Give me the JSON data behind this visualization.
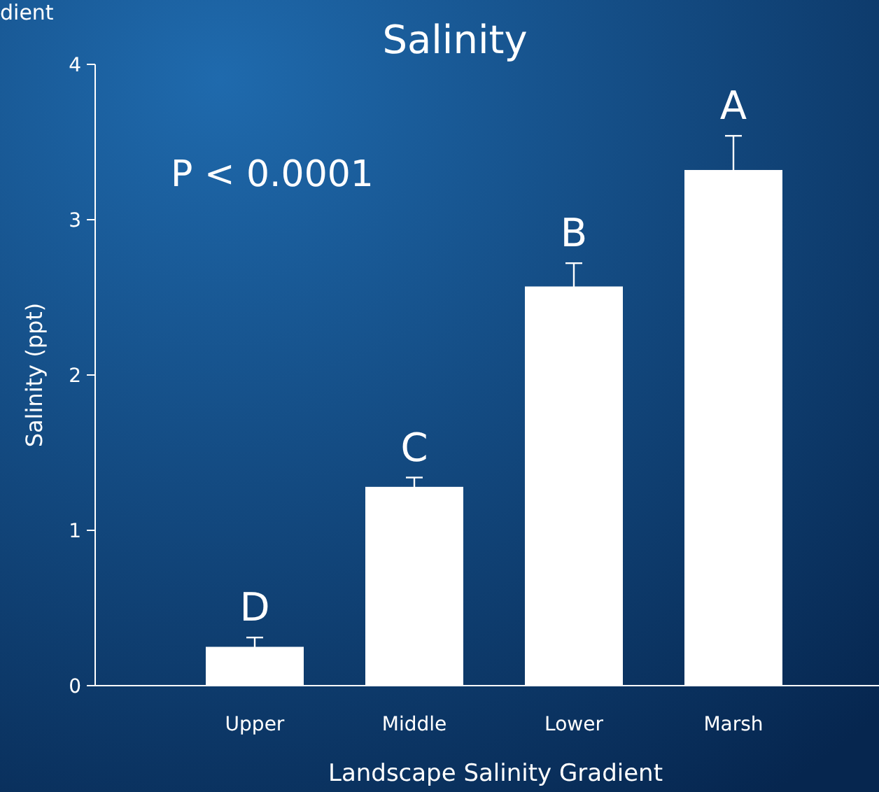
{
  "chart_data": {
    "type": "bar",
    "title": "Salinity",
    "xlabel": "Landscape Salinity Gradient",
    "ylabel": "Salinity (ppt)",
    "categories": [
      "Upper",
      "Middle",
      "Lower",
      "Marsh"
    ],
    "values": [
      0.25,
      1.28,
      2.57,
      3.32
    ],
    "errors": [
      0.06,
      0.06,
      0.15,
      0.22
    ],
    "color": "#ffffff",
    "ylim": [
      0,
      4
    ],
    "yticks": [
      0,
      1,
      2,
      3,
      4
    ],
    "grid": false,
    "annotations": [
      "dient",
      "P < 0.0001",
      {
        "text": "D",
        "x": "Upper",
        "y": 0.31
      },
      {
        "text": "C",
        "x": "Middle",
        "y": 1.34
      },
      {
        "text": "B",
        "x": "Lower",
        "y": 2.72
      },
      {
        "text": "A",
        "x": "Marsh",
        "y": 3.54
      }
    ]
  }
}
